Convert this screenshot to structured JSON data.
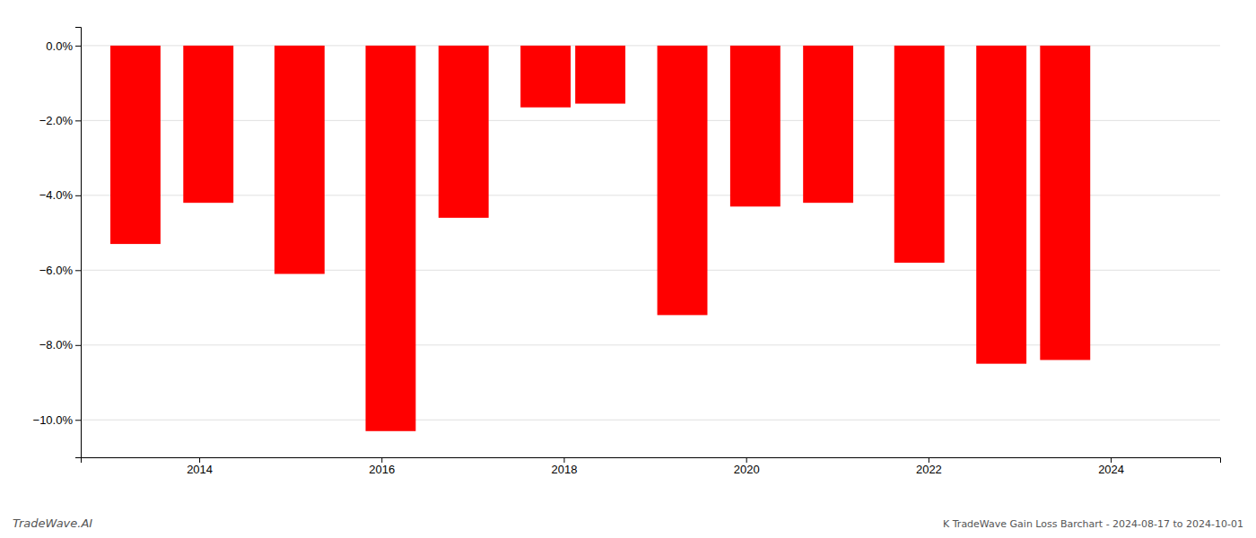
{
  "chart_data": {
    "type": "bar",
    "x": [
      2013.3,
      2014.1,
      2015.1,
      2016.1,
      2016.9,
      2017.8,
      2018.4,
      2019.3,
      2020.1,
      2020.9,
      2021.9,
      2022.8,
      2023.5
    ],
    "values": [
      -5.3,
      -4.2,
      -6.1,
      -10.3,
      -4.6,
      -1.65,
      -1.55,
      -7.2,
      -4.3,
      -4.2,
      -5.8,
      -8.5,
      -8.4
    ],
    "color": "#ff0000",
    "xlim": [
      2012.7,
      2025.2
    ],
    "xticks": [
      2014,
      2016,
      2018,
      2020,
      2022,
      2024
    ],
    "ylim": [
      -11.0,
      0.5
    ],
    "yticks": [
      {
        "value": 0.0,
        "label": "0.0%"
      },
      {
        "value": -2.0,
        "label": "−2.0%"
      },
      {
        "value": -4.0,
        "label": "−4.0%"
      },
      {
        "value": -6.0,
        "label": "−6.0%"
      },
      {
        "value": -8.0,
        "label": "−8.0%"
      },
      {
        "value": -10.0,
        "label": "−10.0%"
      }
    ],
    "grid": true,
    "annotations": [
      "TradeWave.AI",
      "K TradeWave Gain Loss Barchart - 2024-08-17 to 2024-10-01"
    ]
  }
}
